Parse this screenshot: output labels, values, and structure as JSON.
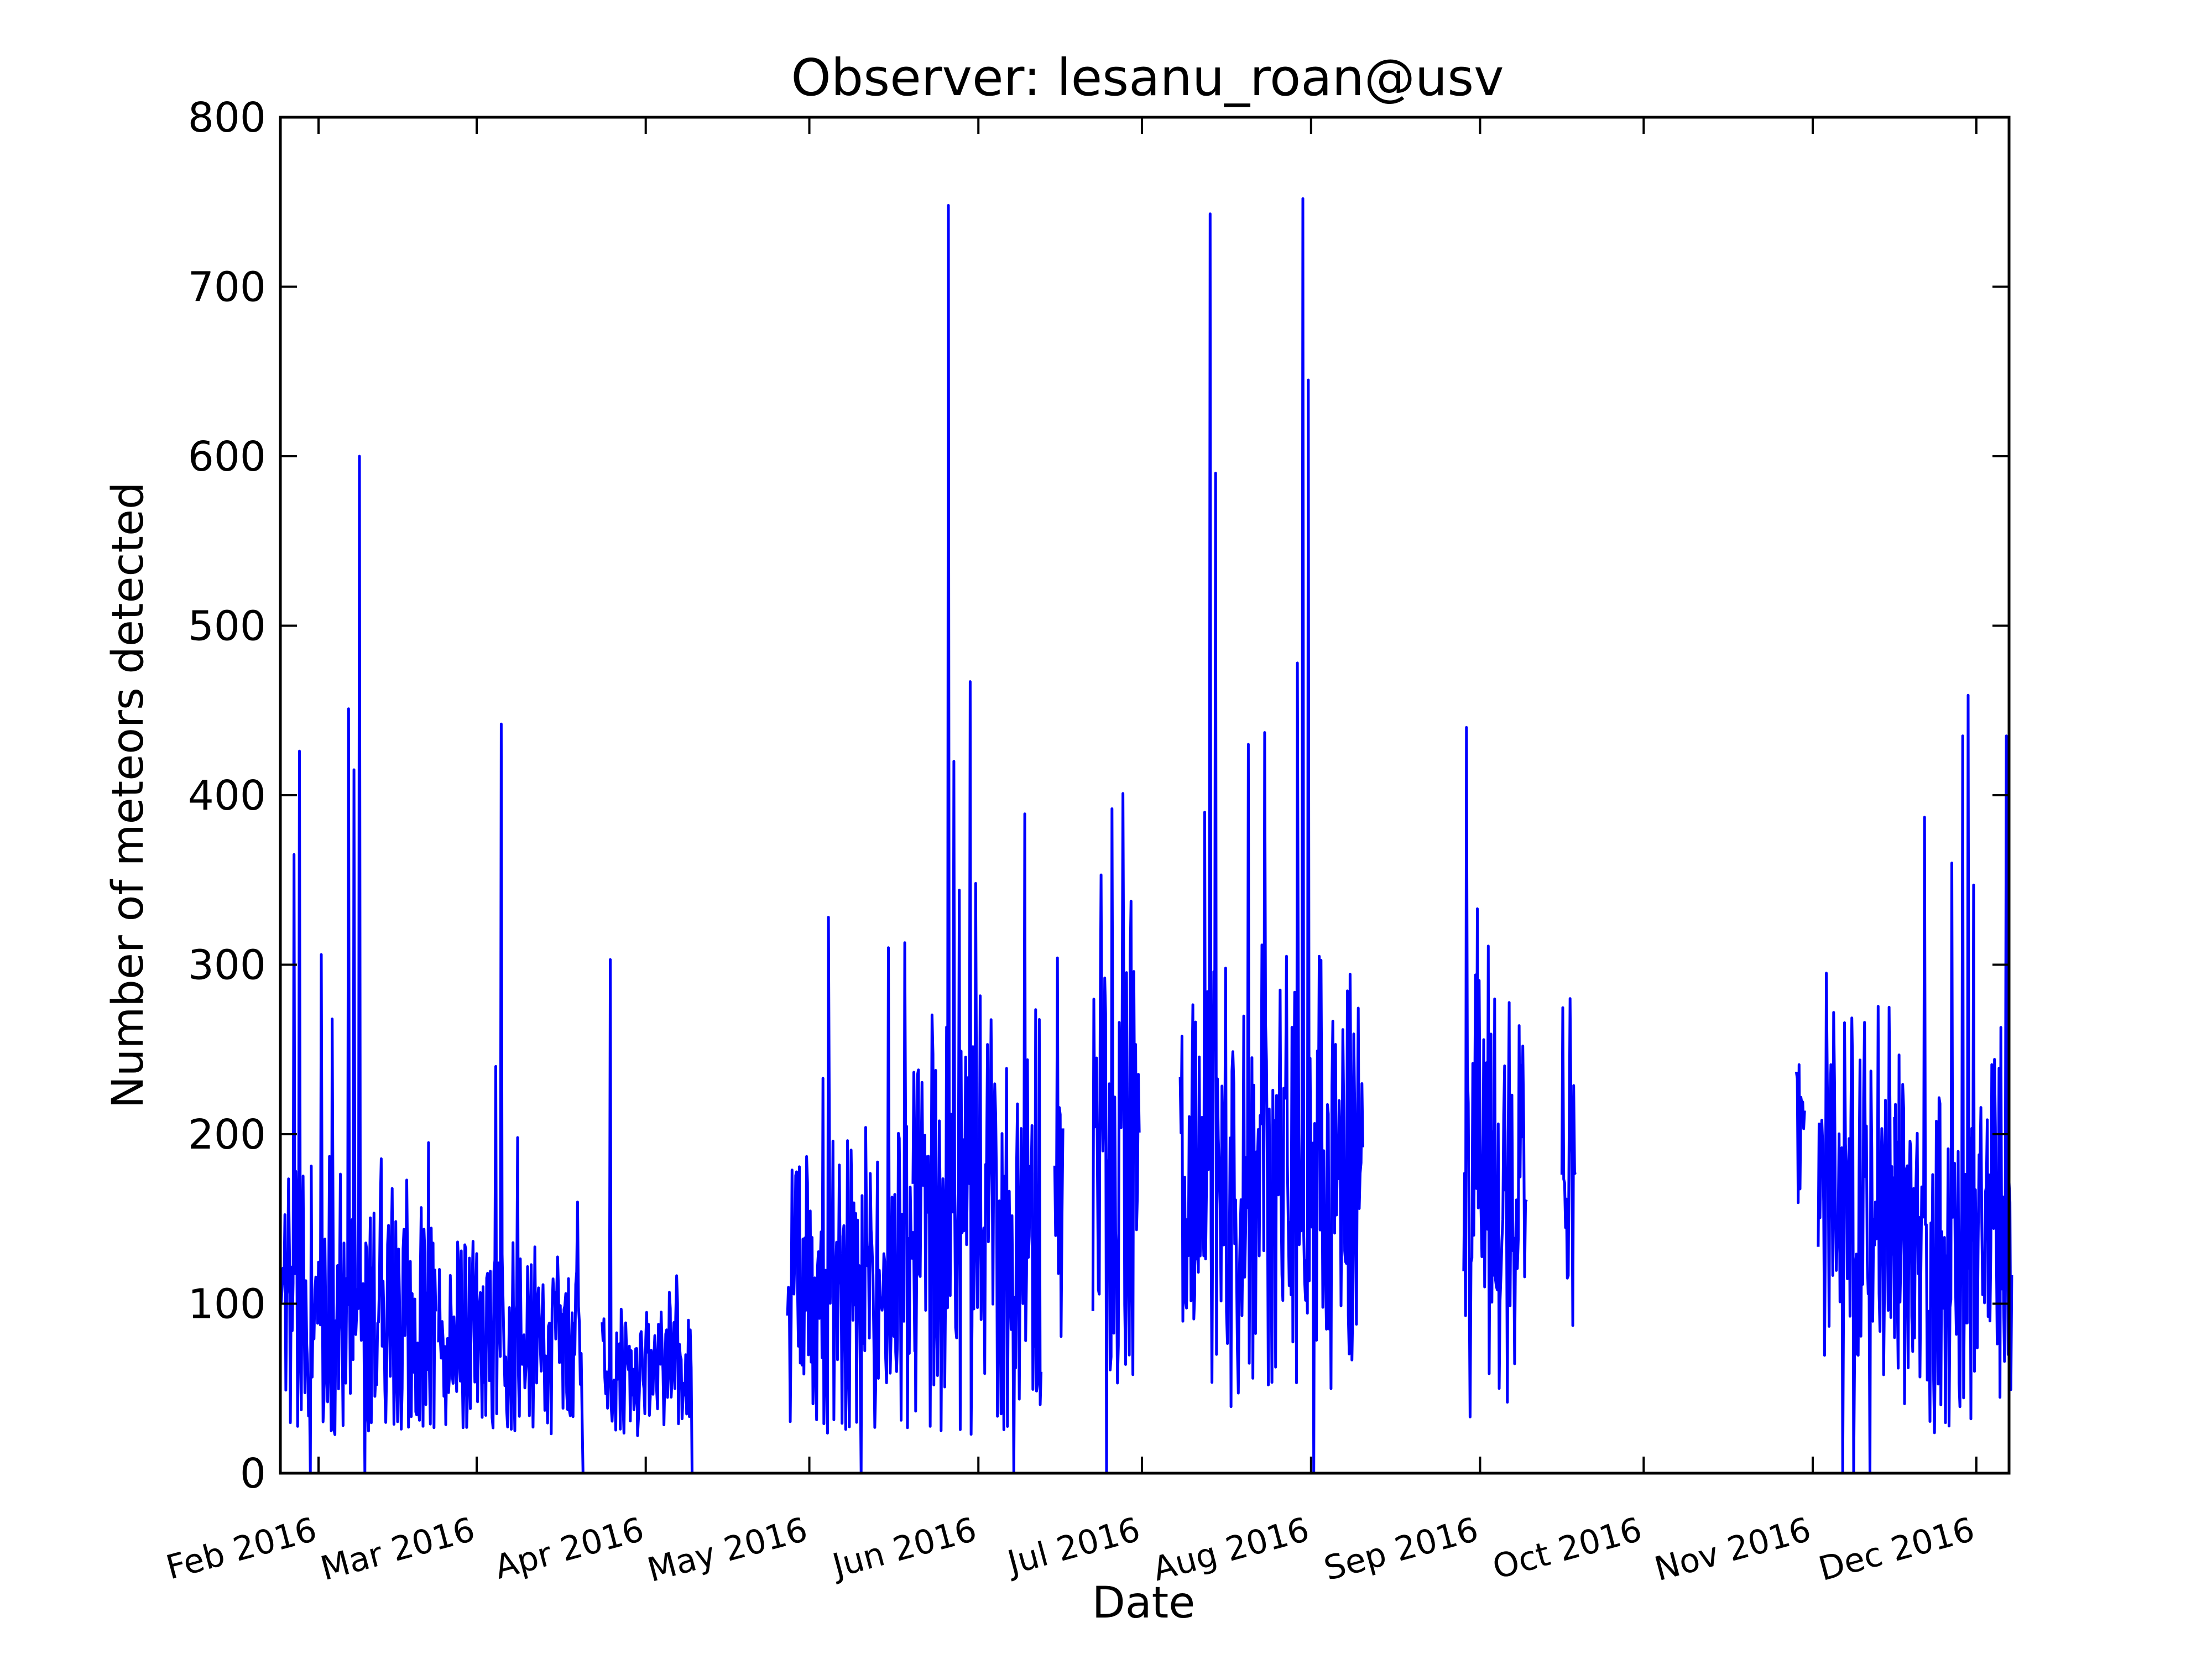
{
  "chart_data": {
    "type": "line",
    "title": "Observer: lesanu_roan@usv",
    "xlabel": "Date",
    "ylabel": "Number of meteors detected",
    "xlim": [
      "2016-01-25",
      "2016-12-07"
    ],
    "ylim": [
      0,
      800
    ],
    "yticks": [
      0,
      100,
      200,
      300,
      400,
      500,
      600,
      700,
      800
    ],
    "xticks": [
      {
        "date": "2016-02-01",
        "label": "Feb 2016"
      },
      {
        "date": "2016-03-01",
        "label": "Mar 2016"
      },
      {
        "date": "2016-04-01",
        "label": "Apr 2016"
      },
      {
        "date": "2016-05-01",
        "label": "May 2016"
      },
      {
        "date": "2016-06-01",
        "label": "Jun 2016"
      },
      {
        "date": "2016-07-01",
        "label": "Jul 2016"
      },
      {
        "date": "2016-08-01",
        "label": "Aug 2016"
      },
      {
        "date": "2016-09-01",
        "label": "Sep 2016"
      },
      {
        "date": "2016-10-01",
        "label": "Oct 2016"
      },
      {
        "date": "2016-11-01",
        "label": "Nov 2016"
      },
      {
        "date": "2016-12-01",
        "label": "Dec 2016"
      }
    ],
    "grid": false,
    "line_color": "#0000ff",
    "series": [
      {
        "segments": [
          {
            "start": "2016-01-25",
            "end": "2016-02-22",
            "base": 90,
            "var": 70,
            "spikes": [
              {
                "x": "2016-01-27",
                "y": 365
              },
              {
                "x": "2016-01-28",
                "y": 426
              },
              {
                "x": "2016-01-30",
                "y": 250
              },
              {
                "x": "2016-01-30",
                "y": 0
              },
              {
                "x": "2016-02-01",
                "y": 306
              },
              {
                "x": "2016-02-03",
                "y": 268
              },
              {
                "x": "2016-02-06",
                "y": 451
              },
              {
                "x": "2016-02-07",
                "y": 415
              },
              {
                "x": "2016-02-08",
                "y": 600
              },
              {
                "x": "2016-02-09",
                "y": 0
              },
              {
                "x": "2016-02-14",
                "y": 168
              },
              {
                "x": "2016-02-20",
                "y": 130
              }
            ]
          },
          {
            "start": "2016-02-23",
            "end": "2016-03-20",
            "base": 75,
            "var": 45,
            "spikes": [
              {
                "x": "2016-03-04",
                "y": 240
              },
              {
                "x": "2016-03-05",
                "y": 442
              },
              {
                "x": "2016-03-08",
                "y": 198
              },
              {
                "x": "2016-03-19",
                "y": 160
              },
              {
                "x": "2016-03-20",
                "y": 0
              }
            ]
          },
          {
            "start": "2016-03-24",
            "end": "2016-04-09",
            "base": 65,
            "var": 35,
            "spikes": [
              {
                "x": "2016-03-25",
                "y": 303
              },
              {
                "x": "2016-04-09",
                "y": 0
              }
            ]
          },
          {
            "start": "2016-04-27",
            "end": "2016-05-20",
            "base": 110,
            "var": 70,
            "spikes": [
              {
                "x": "2016-05-03",
                "y": 233
              },
              {
                "x": "2016-05-04",
                "y": 328
              },
              {
                "x": "2016-05-10",
                "y": 0
              },
              {
                "x": "2016-05-15",
                "y": 310
              },
              {
                "x": "2016-05-18",
                "y": 313
              }
            ]
          },
          {
            "start": "2016-05-20",
            "end": "2016-06-12",
            "base": 145,
            "var": 95,
            "spikes": [
              {
                "x": "2016-05-26",
                "y": 748
              },
              {
                "x": "2016-05-27",
                "y": 420
              },
              {
                "x": "2016-05-28",
                "y": 344
              },
              {
                "x": "2016-05-30",
                "y": 467
              },
              {
                "x": "2016-05-31",
                "y": 348
              },
              {
                "x": "2016-06-07",
                "y": 0
              },
              {
                "x": "2016-06-09",
                "y": 389
              }
            ]
          },
          {
            "start": "2016-06-15",
            "end": "2016-06-16",
            "base": 160,
            "var": 60,
            "spikes": [
              {
                "x": "2016-06-15",
                "y": 304
              }
            ]
          },
          {
            "start": "2016-06-22",
            "end": "2016-06-30",
            "base": 200,
            "var": 110,
            "spikes": [
              {
                "x": "2016-06-23",
                "y": 353
              },
              {
                "x": "2016-06-24",
                "y": 0
              },
              {
                "x": "2016-06-25",
                "y": 392
              },
              {
                "x": "2016-06-27",
                "y": 401
              },
              {
                "x": "2016-06-29",
                "y": 296
              }
            ]
          },
          {
            "start": "2016-07-08",
            "end": "2016-08-10",
            "base": 165,
            "var": 100,
            "spikes": [
              {
                "x": "2016-07-12",
                "y": 390
              },
              {
                "x": "2016-07-13",
                "y": 743
              },
              {
                "x": "2016-07-14",
                "y": 590
              },
              {
                "x": "2016-07-20",
                "y": 430
              },
              {
                "x": "2016-07-23",
                "y": 437
              },
              {
                "x": "2016-07-27",
                "y": 305
              },
              {
                "x": "2016-07-29",
                "y": 478
              },
              {
                "x": "2016-07-30",
                "y": 752
              },
              {
                "x": "2016-07-31",
                "y": 645
              },
              {
                "x": "2016-08-01",
                "y": 0
              },
              {
                "x": "2016-08-02",
                "y": 305
              },
              {
                "x": "2016-08-05",
                "y": 253
              }
            ]
          },
          {
            "start": "2016-08-29",
            "end": "2016-09-09",
            "base": 165,
            "var": 95,
            "spikes": [
              {
                "x": "2016-08-29",
                "y": 440
              },
              {
                "x": "2016-08-31",
                "y": 333
              },
              {
                "x": "2016-09-02",
                "y": 311
              }
            ]
          },
          {
            "start": "2016-09-16",
            "end": "2016-09-18",
            "base": 170,
            "var": 80,
            "spikes": [
              {
                "x": "2016-09-17",
                "y": 280
              }
            ]
          },
          {
            "start": "2016-10-29",
            "end": "2016-10-30",
            "base": 200,
            "var": 50,
            "spikes": [
              {
                "x": "2016-10-29",
                "y": 241
              }
            ]
          },
          {
            "start": "2016-11-02",
            "end": "2016-11-16",
            "base": 165,
            "var": 80,
            "spikes": [
              {
                "x": "2016-11-03",
                "y": 295
              },
              {
                "x": "2016-11-06",
                "y": 0
              },
              {
                "x": "2016-11-08",
                "y": 0
              },
              {
                "x": "2016-11-10",
                "y": 266
              },
              {
                "x": "2016-11-11",
                "y": 0
              }
            ]
          },
          {
            "start": "2016-11-16",
            "end": "2016-12-07",
            "base": 135,
            "var": 80,
            "spikes": [
              {
                "x": "2016-11-21",
                "y": 387
              },
              {
                "x": "2016-11-26",
                "y": 360
              },
              {
                "x": "2016-11-28",
                "y": 435
              },
              {
                "x": "2016-11-29",
                "y": 459
              },
              {
                "x": "2016-11-30",
                "y": 347
              },
              {
                "x": "2016-12-05",
                "y": 263
              },
              {
                "x": "2016-12-06",
                "y": 435
              }
            ]
          }
        ]
      }
    ]
  }
}
